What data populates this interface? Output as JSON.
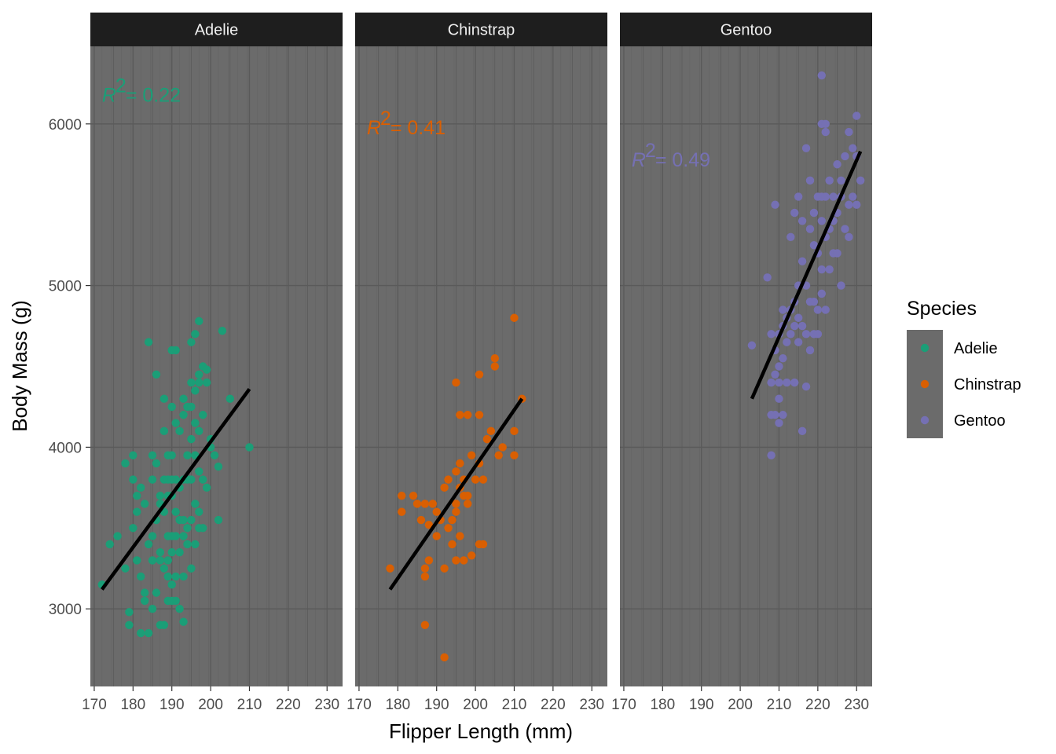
{
  "chart_data": {
    "type": "scatter",
    "xlabel": "Flipper Length (mm)",
    "ylabel": "Body Mass (g)",
    "xlim": [
      169,
      234
    ],
    "ylim": [
      2520,
      6480
    ],
    "x_ticks": [
      170,
      180,
      190,
      200,
      210,
      220,
      230
    ],
    "y_ticks": [
      3000,
      4000,
      5000,
      6000
    ],
    "x_tick_labels": [
      "170",
      "180",
      "190",
      "200",
      "210",
      "220",
      "230"
    ],
    "y_tick_labels": [
      "3000",
      "4000",
      "5000",
      "6000"
    ],
    "grid": true,
    "legend": {
      "title": "Species",
      "placement": "right",
      "entries": [
        "Adelie",
        "Chinstrap",
        "Gentoo"
      ]
    },
    "panel_background": "#6b6b6b",
    "strip_background": "#1e1e1e",
    "grid_color": "#5a5a5a",
    "fit_line_color": "#000000",
    "facets": [
      {
        "name": "Adelie",
        "color": "#1b9e77",
        "r2_label": "R",
        "r2_value": "= 0.22",
        "r2_anchor": [
          172,
          6180
        ],
        "fit_line": [
          [
            172,
            3120
          ],
          [
            210,
            4360
          ]
        ],
        "points": [
          [
            172,
            3150
          ],
          [
            174,
            3400
          ],
          [
            176,
            3450
          ],
          [
            178,
            3250
          ],
          [
            178,
            3900
          ],
          [
            179,
            2980
          ],
          [
            179,
            2900
          ],
          [
            180,
            3950
          ],
          [
            180,
            3800
          ],
          [
            180,
            3500
          ],
          [
            181,
            3600
          ],
          [
            181,
            3700
          ],
          [
            181,
            3300
          ],
          [
            182,
            2850
          ],
          [
            182,
            3200
          ],
          [
            182,
            3750
          ],
          [
            183,
            3650
          ],
          [
            183,
            3100
          ],
          [
            183,
            3050
          ],
          [
            184,
            4650
          ],
          [
            184,
            3400
          ],
          [
            184,
            2850
          ],
          [
            185,
            3950
          ],
          [
            185,
            3800
          ],
          [
            185,
            3450
          ],
          [
            185,
            3300
          ],
          [
            185,
            3000
          ],
          [
            186,
            4450
          ],
          [
            186,
            3900
          ],
          [
            186,
            3550
          ],
          [
            186,
            3100
          ],
          [
            187,
            3700
          ],
          [
            187,
            3650
          ],
          [
            187,
            3350
          ],
          [
            187,
            3300
          ],
          [
            187,
            2900
          ],
          [
            188,
            4300
          ],
          [
            188,
            4100
          ],
          [
            188,
            3800
          ],
          [
            188,
            3600
          ],
          [
            188,
            3250
          ],
          [
            188,
            2900
          ],
          [
            189,
            3950
          ],
          [
            189,
            3800
          ],
          [
            189,
            3700
          ],
          [
            189,
            3450
          ],
          [
            189,
            3300
          ],
          [
            189,
            3200
          ],
          [
            189,
            3050
          ],
          [
            190,
            4600
          ],
          [
            190,
            4250
          ],
          [
            190,
            3950
          ],
          [
            190,
            3800
          ],
          [
            190,
            3700
          ],
          [
            190,
            3450
          ],
          [
            190,
            3350
          ],
          [
            190,
            3150
          ],
          [
            190,
            3050
          ],
          [
            191,
            4600
          ],
          [
            191,
            4150
          ],
          [
            191,
            3800
          ],
          [
            191,
            3600
          ],
          [
            191,
            3450
          ],
          [
            191,
            3200
          ],
          [
            191,
            3050
          ],
          [
            192,
            4100
          ],
          [
            192,
            3750
          ],
          [
            192,
            3550
          ],
          [
            192,
            3350
          ],
          [
            192,
            3000
          ],
          [
            193,
            4300
          ],
          [
            193,
            4200
          ],
          [
            193,
            3800
          ],
          [
            193,
            3550
          ],
          [
            193,
            3450
          ],
          [
            193,
            3200
          ],
          [
            193,
            2920
          ],
          [
            194,
            4250
          ],
          [
            194,
            3950
          ],
          [
            194,
            3800
          ],
          [
            194,
            3500
          ],
          [
            194,
            3400
          ],
          [
            195,
            4650
          ],
          [
            195,
            4400
          ],
          [
            195,
            4250
          ],
          [
            195,
            4050
          ],
          [
            195,
            3800
          ],
          [
            195,
            3550
          ],
          [
            195,
            3250
          ],
          [
            196,
            4700
          ],
          [
            196,
            4350
          ],
          [
            196,
            4150
          ],
          [
            196,
            3950
          ],
          [
            196,
            3650
          ],
          [
            196,
            3400
          ],
          [
            197,
            4780
          ],
          [
            197,
            4450
          ],
          [
            197,
            4400
          ],
          [
            197,
            4100
          ],
          [
            197,
            3850
          ],
          [
            197,
            3600
          ],
          [
            197,
            3500
          ],
          [
            198,
            4500
          ],
          [
            198,
            4200
          ],
          [
            198,
            3800
          ],
          [
            198,
            3500
          ],
          [
            199,
            4480
          ],
          [
            199,
            4400
          ],
          [
            199,
            3750
          ],
          [
            200,
            4000
          ],
          [
            200,
            4050
          ],
          [
            201,
            3950
          ],
          [
            202,
            3880
          ],
          [
            202,
            3550
          ],
          [
            203,
            4720
          ],
          [
            205,
            4300
          ],
          [
            210,
            4000
          ]
        ]
      },
      {
        "name": "Chinstrap",
        "color": "#d95f02",
        "r2_label": "R",
        "r2_value": "= 0.41",
        "r2_anchor": [
          172,
          5980
        ],
        "fit_line": [
          [
            178,
            3120
          ],
          [
            212,
            4300
          ]
        ],
        "points": [
          [
            178,
            3250
          ],
          [
            181,
            3700
          ],
          [
            181,
            3600
          ],
          [
            184,
            3700
          ],
          [
            185,
            3650
          ],
          [
            186,
            3550
          ],
          [
            187,
            3650
          ],
          [
            187,
            3250
          ],
          [
            187,
            3200
          ],
          [
            187,
            2900
          ],
          [
            188,
            3520
          ],
          [
            188,
            3300
          ],
          [
            189,
            3650
          ],
          [
            190,
            3600
          ],
          [
            190,
            3450
          ],
          [
            191,
            3550
          ],
          [
            192,
            3750
          ],
          [
            192,
            3250
          ],
          [
            192,
            2700
          ],
          [
            193,
            3800
          ],
          [
            193,
            3500
          ],
          [
            194,
            3550
          ],
          [
            194,
            3400
          ],
          [
            195,
            4400
          ],
          [
            195,
            3850
          ],
          [
            195,
            3650
          ],
          [
            195,
            3600
          ],
          [
            195,
            3300
          ],
          [
            196,
            4200
          ],
          [
            196,
            3900
          ],
          [
            196,
            3750
          ],
          [
            196,
            3450
          ],
          [
            197,
            3800
          ],
          [
            197,
            3700
          ],
          [
            197,
            3300
          ],
          [
            198,
            4200
          ],
          [
            198,
            3700
          ],
          [
            198,
            3650
          ],
          [
            199,
            3950
          ],
          [
            199,
            3330
          ],
          [
            200,
            3800
          ],
          [
            201,
            4450
          ],
          [
            201,
            4200
          ],
          [
            201,
            3900
          ],
          [
            201,
            3400
          ],
          [
            202,
            3800
          ],
          [
            202,
            3400
          ],
          [
            203,
            4050
          ],
          [
            204,
            4100
          ],
          [
            205,
            4550
          ],
          [
            205,
            4500
          ],
          [
            206,
            3950
          ],
          [
            207,
            4000
          ],
          [
            210,
            4800
          ],
          [
            210,
            4100
          ],
          [
            210,
            3950
          ],
          [
            212,
            4300
          ]
        ]
      },
      {
        "name": "Gentoo",
        "color": "#7570b3",
        "r2_label": "R",
        "r2_value": "= 0.49",
        "r2_anchor": [
          172,
          5780
        ],
        "fit_line": [
          [
            203,
            4300
          ],
          [
            231,
            5830
          ]
        ],
        "points": [
          [
            203,
            4630
          ],
          [
            207,
            5050
          ],
          [
            208,
            3950
          ],
          [
            208,
            4700
          ],
          [
            208,
            4400
          ],
          [
            208,
            4200
          ],
          [
            209,
            5500
          ],
          [
            209,
            4600
          ],
          [
            209,
            4450
          ],
          [
            209,
            4200
          ],
          [
            210,
            4700
          ],
          [
            210,
            4500
          ],
          [
            210,
            4400
          ],
          [
            210,
            4300
          ],
          [
            210,
            4150
          ],
          [
            211,
            4850
          ],
          [
            211,
            4750
          ],
          [
            211,
            4550
          ],
          [
            211,
            4200
          ],
          [
            212,
            4800
          ],
          [
            212,
            4650
          ],
          [
            212,
            4400
          ],
          [
            213,
            5300
          ],
          [
            213,
            4850
          ],
          [
            213,
            4700
          ],
          [
            214,
            5450
          ],
          [
            214,
            4900
          ],
          [
            214,
            4750
          ],
          [
            214,
            4400
          ],
          [
            215,
            5550
          ],
          [
            215,
            5000
          ],
          [
            215,
            4800
          ],
          [
            215,
            4650
          ],
          [
            216,
            5400
          ],
          [
            216,
            5150
          ],
          [
            216,
            4750
          ],
          [
            216,
            4100
          ],
          [
            217,
            5850
          ],
          [
            217,
            5000
          ],
          [
            217,
            4700
          ],
          [
            217,
            4375
          ],
          [
            218,
            5650
          ],
          [
            218,
            5350
          ],
          [
            218,
            4900
          ],
          [
            218,
            4600
          ],
          [
            219,
            5450
          ],
          [
            219,
            5250
          ],
          [
            219,
            4900
          ],
          [
            219,
            4700
          ],
          [
            220,
            5550
          ],
          [
            220,
            5200
          ],
          [
            220,
            4850
          ],
          [
            220,
            4700
          ],
          [
            221,
            6000
          ],
          [
            221,
            6300
          ],
          [
            221,
            5550
          ],
          [
            221,
            5400
          ],
          [
            221,
            5100
          ],
          [
            221,
            4950
          ],
          [
            222,
            6000
          ],
          [
            222,
            5950
          ],
          [
            222,
            5550
          ],
          [
            222,
            5300
          ],
          [
            222,
            4850
          ],
          [
            223,
            5650
          ],
          [
            223,
            5350
          ],
          [
            223,
            5100
          ],
          [
            224,
            5550
          ],
          [
            224,
            5400
          ],
          [
            224,
            5200
          ],
          [
            225,
            5750
          ],
          [
            225,
            5450
          ],
          [
            225,
            5200
          ],
          [
            226,
            5650
          ],
          [
            226,
            5550
          ],
          [
            226,
            5000
          ],
          [
            227,
            5800
          ],
          [
            227,
            5350
          ],
          [
            228,
            5950
          ],
          [
            228,
            5500
          ],
          [
            228,
            5300
          ],
          [
            229,
            5850
          ],
          [
            229,
            5550
          ],
          [
            230,
            6050
          ],
          [
            230,
            5800
          ],
          [
            230,
            5500
          ],
          [
            231,
            5650
          ]
        ]
      }
    ]
  }
}
